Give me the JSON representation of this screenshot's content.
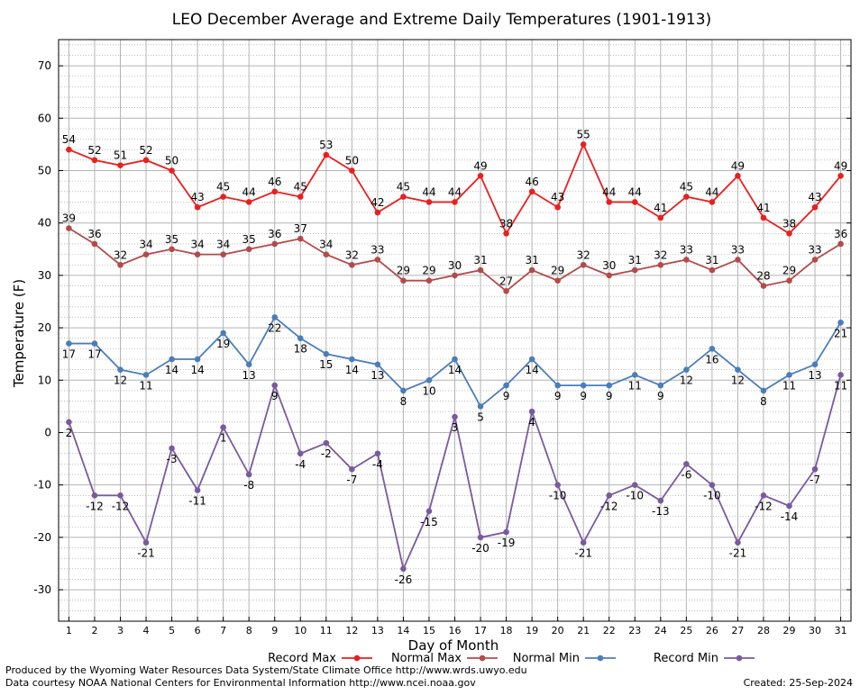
{
  "chart_data": {
    "type": "line",
    "title": "LEO December Average and Extreme Daily Temperatures (1901-1913)",
    "xlabel": "Day of Month",
    "ylabel": "Temperature (F)",
    "xlim": [
      0.6,
      31.4
    ],
    "ylim": [
      -36,
      75
    ],
    "yticks": [
      -30,
      -20,
      -10,
      0,
      10,
      20,
      30,
      40,
      50,
      60,
      70
    ],
    "x": [
      1,
      2,
      3,
      4,
      5,
      6,
      7,
      8,
      9,
      10,
      11,
      12,
      13,
      14,
      15,
      16,
      17,
      18,
      19,
      20,
      21,
      22,
      23,
      24,
      25,
      26,
      27,
      28,
      29,
      30,
      31
    ],
    "grid": true,
    "legend_position": "bottom",
    "series": [
      {
        "name": "Record Max",
        "color": "#e8201f",
        "label_position": "above",
        "values": [
          54,
          52,
          51,
          52,
          50,
          43,
          45,
          44,
          46,
          45,
          53,
          50,
          42,
          45,
          44,
          44,
          49,
          38,
          46,
          43,
          55,
          44,
          44,
          41,
          45,
          44,
          49,
          41,
          38,
          43,
          49
        ]
      },
      {
        "name": "Normal Max",
        "color": "#b44a4a",
        "label_position": "above",
        "values": [
          39,
          36,
          32,
          34,
          35,
          34,
          34,
          35,
          36,
          37,
          34,
          32,
          33,
          29,
          29,
          30,
          31,
          27,
          31,
          29,
          32,
          30,
          31,
          32,
          33,
          31,
          33,
          28,
          29,
          33,
          36
        ]
      },
      {
        "name": "Normal Min",
        "color": "#4a7ebb",
        "label_position": "below",
        "values": [
          17,
          17,
          12,
          11,
          14,
          14,
          19,
          13,
          22,
          18,
          15,
          14,
          13,
          8,
          10,
          14,
          5,
          9,
          14,
          9,
          9,
          9,
          11,
          9,
          12,
          16,
          12,
          8,
          11,
          13,
          21
        ]
      },
      {
        "name": "Record Min",
        "color": "#7a5a9e",
        "label_position": "below",
        "values": [
          2,
          -12,
          -12,
          -21,
          -3,
          -11,
          1,
          -8,
          9,
          -4,
          -2,
          -7,
          -4,
          -26,
          -15,
          3,
          -20,
          -19,
          4,
          -10,
          -21,
          -12,
          -10,
          -13,
          -6,
          -10,
          -21,
          -12,
          -14,
          -7,
          11
        ]
      }
    ]
  },
  "footer": {
    "line1": "Produced by the Wyoming Water Resources Data System/State Climate Office http://www.wrds.uwyo.edu",
    "line2": "Data courtesy NOAA National Centers for Environmental Information http://www.ncei.noaa.gov",
    "created": "Created:  25-Sep-2024"
  }
}
